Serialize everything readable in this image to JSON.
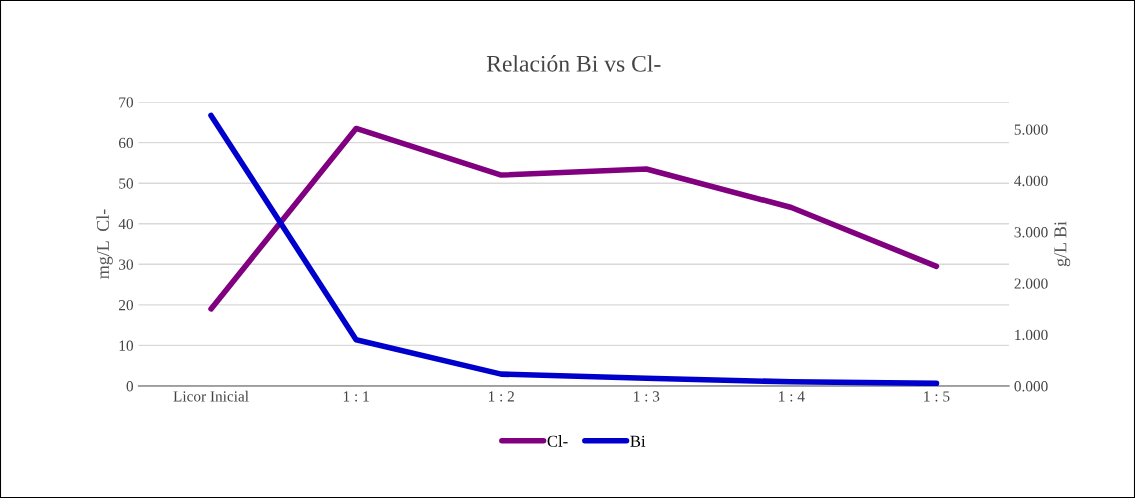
{
  "chart_data": {
    "type": "line",
    "title": "Relación Bi vs Cl-",
    "ylabel": "mg/L  Cl-",
    "y2label": "g/L Bi",
    "categories": [
      "Licor Inicial",
      "1 : 1",
      "1 : 2",
      "1 : 3",
      "1 : 4",
      "1 : 5"
    ],
    "series": [
      {
        "name": "Cl-",
        "color": "#800080",
        "values": [
          19,
          63.5,
          52,
          53.5,
          44,
          29.5
        ]
      },
      {
        "name": "Bi",
        "color": "#0000cc",
        "axis": "y2",
        "values": [
          5.27,
          0.9,
          0.23,
          0.15,
          0.08,
          0.05
        ]
      }
    ],
    "ylim": [
      0,
      70
    ],
    "yticks": [
      0,
      10,
      20,
      30,
      40,
      50,
      60,
      70
    ],
    "y2lim": [
      0,
      5.53
    ],
    "y2ticks": [
      {
        "value": 0,
        "label": "0.000"
      },
      {
        "value": 1,
        "label": "1.000"
      },
      {
        "value": 2,
        "label": "2.000"
      },
      {
        "value": 3,
        "label": "3.000"
      },
      {
        "value": 4,
        "label": "4.000"
      },
      {
        "value": 5,
        "label": "5.000"
      }
    ],
    "grid": "y",
    "legend": "bottom",
    "marker": "none",
    "line_style": "solid"
  }
}
